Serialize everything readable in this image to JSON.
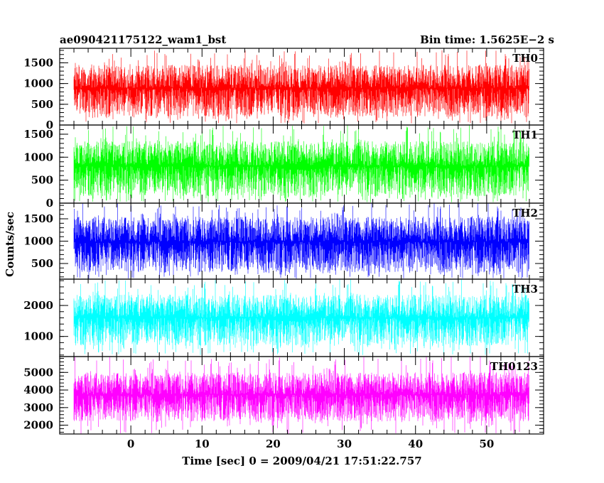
{
  "figure": {
    "title": "ae090421175122_wam1_bst",
    "bin_time": "Bin time: 1.5625E−2 s",
    "ylabel": "Counts/sec",
    "xlabel": "Time [sec] 0 = 2009/04/21 17:51:22.757"
  },
  "chart_data": [
    {
      "type": "line",
      "name": "TH0",
      "color": "#ff0000",
      "xlim": [
        -10,
        58
      ],
      "ylim": [
        0,
        1850
      ],
      "yticks": [
        0,
        500,
        1000,
        1500
      ],
      "ytick_labels": [
        "0",
        "500",
        "1000",
        "1500"
      ],
      "data_range": [
        -8,
        56
      ],
      "y_typical": [
        200,
        1450
      ],
      "y_extremes": [
        30,
        1800
      ],
      "grid": false
    },
    {
      "type": "line",
      "name": "TH1",
      "color": "#00ff00",
      "xlim": [
        -10,
        58
      ],
      "ylim": [
        0,
        1700
      ],
      "yticks": [
        0,
        500,
        1000,
        1500
      ],
      "ytick_labels": [
        "0",
        "500",
        "1000",
        "1500"
      ],
      "data_range": [
        -8,
        56
      ],
      "y_typical": [
        150,
        1350
      ],
      "y_extremes": [
        20,
        1700
      ],
      "grid": false
    },
    {
      "type": "line",
      "name": "TH2",
      "color": "#0000ff",
      "xlim": [
        -10,
        58
      ],
      "ylim": [
        150,
        1850
      ],
      "yticks": [
        500,
        1000,
        1500
      ],
      "ytick_labels": [
        "500",
        "1000",
        "1500"
      ],
      "data_range": [
        -8,
        56
      ],
      "y_typical": [
        300,
        1550
      ],
      "y_extremes": [
        160,
        1850
      ],
      "grid": false
    },
    {
      "type": "line",
      "name": "TH3",
      "color": "#00ffff",
      "xlim": [
        -10,
        58
      ],
      "ylim": [
        350,
        2850
      ],
      "yticks": [
        1000,
        2000
      ],
      "ytick_labels": [
        "1000",
        "2000"
      ],
      "data_range": [
        -8,
        56
      ],
      "y_typical": [
        700,
        2350
      ],
      "y_extremes": [
        400,
        2850
      ],
      "grid": false
    },
    {
      "type": "line",
      "name": "TH0123",
      "color": "#ff00ff",
      "xlim": [
        -10,
        58
      ],
      "ylim": [
        1500,
        5900
      ],
      "yticks": [
        2000,
        3000,
        4000,
        5000
      ],
      "ytick_labels": [
        "2000",
        "3000",
        "4000",
        "5000"
      ],
      "xticks": [
        0,
        10,
        20,
        30,
        40,
        50
      ],
      "xtick_labels": [
        "0",
        "10",
        "20",
        "30",
        "40",
        "50"
      ],
      "data_range": [
        -8,
        56
      ],
      "y_typical": [
        2200,
        5000
      ],
      "y_extremes": [
        1500,
        5900
      ],
      "grid": false
    }
  ]
}
